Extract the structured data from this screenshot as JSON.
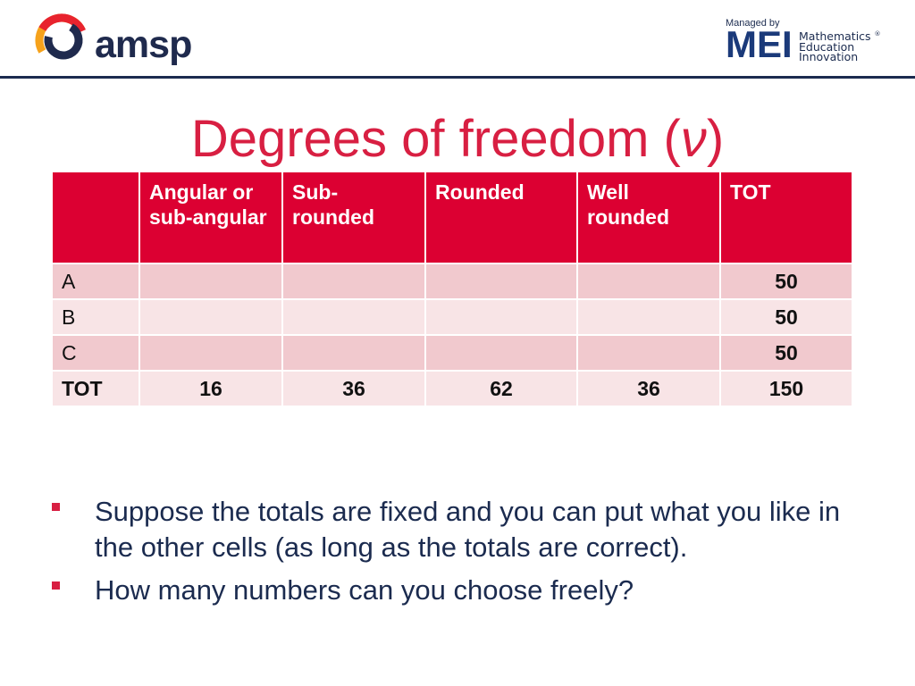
{
  "header": {
    "brand": "amsp",
    "managed_by": "Managed by",
    "partner_initials": "MEI",
    "partner_line1": "Mathematics",
    "partner_line2": "Education",
    "partner_line3": "Innovation",
    "partner_reg": "®"
  },
  "title": {
    "text": "Degrees of freedom (",
    "symbol": "ν",
    "close": ")"
  },
  "table": {
    "headers": [
      "",
      "Angular or sub-angular",
      "Sub-rounded",
      "Rounded",
      "Well rounded",
      "TOT"
    ],
    "rows": [
      {
        "label": "A",
        "cells": [
          "",
          "",
          "",
          "",
          "50"
        ]
      },
      {
        "label": "B",
        "cells": [
          "",
          "",
          "",
          "",
          "50"
        ]
      },
      {
        "label": "C",
        "cells": [
          "",
          "",
          "",
          "",
          "50"
        ]
      },
      {
        "label": "TOT",
        "cells": [
          "16",
          "36",
          "62",
          "36",
          "150"
        ]
      }
    ]
  },
  "bullets": [
    "Suppose the totals are fixed and you can put what you like in the other cells (as long as the totals are correct).",
    "How many numbers can you choose freely?"
  ],
  "colors": {
    "accent_red": "#dc0032",
    "title_red": "#d81f42",
    "navy": "#1b2b4f",
    "row_dark": "#f1c9ce",
    "row_light": "#f8e4e6"
  },
  "icons": {
    "amsp_mark": "amsp-ring-logo-icon",
    "bullet": "square-bullet-icon"
  }
}
